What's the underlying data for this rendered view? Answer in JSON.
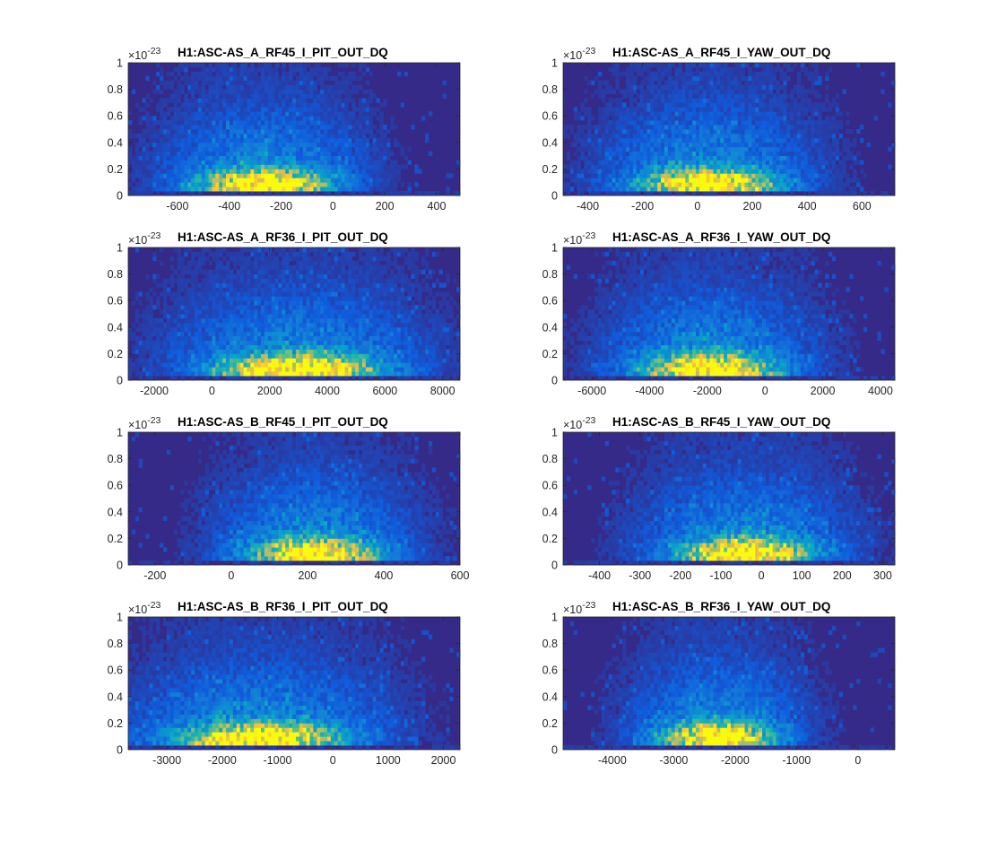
{
  "figure": {
    "colormap": [
      "#352a87",
      "#0f5cdd",
      "#1481d6",
      "#06a4ca",
      "#2eb7a4",
      "#87bf77",
      "#d1bb59",
      "#fec832",
      "#f9fb0e"
    ]
  },
  "chart_data": [
    {
      "type": "heatmap",
      "title": "H1:ASC-AS_A_RF45_I_PIT_OUT_DQ",
      "xlabel": "",
      "ylabel": "",
      "xlim": [
        -790,
        490
      ],
      "ylim": [
        0,
        1
      ],
      "y_exponent": "-23",
      "xticks": [
        -600,
        -400,
        -200,
        0,
        200,
        400
      ],
      "yticks": [
        0,
        0.2,
        0.4,
        0.6,
        0.8,
        1
      ],
      "density_peak": {
        "x": -270,
        "y": 0.08
      },
      "density_spread_x": 150,
      "grid": false
    },
    {
      "type": "heatmap",
      "title": "H1:ASC-AS_A_RF45_I_YAW_OUT_DQ",
      "xlabel": "",
      "ylabel": "",
      "xlim": [
        -490,
        720
      ],
      "ylim": [
        0,
        1
      ],
      "y_exponent": "-23",
      "xticks": [
        -400,
        -200,
        0,
        200,
        400,
        600
      ],
      "yticks": [
        0,
        0.2,
        0.4,
        0.6,
        0.8,
        1
      ],
      "density_peak": {
        "x": 40,
        "y": 0.08
      },
      "density_spread_x": 150,
      "grid": false
    },
    {
      "type": "heatmap",
      "title": "H1:ASC-AS_A_RF36_I_PIT_OUT_DQ",
      "xlabel": "",
      "ylabel": "",
      "xlim": [
        -2900,
        8600
      ],
      "ylim": [
        0,
        1
      ],
      "y_exponent": "-23",
      "xticks": [
        -2000,
        0,
        2000,
        4000,
        6000,
        8000
      ],
      "yticks": [
        0,
        0.2,
        0.4,
        0.6,
        0.8,
        1
      ],
      "density_peak": {
        "x": 3000,
        "y": 0.08
      },
      "density_spread_x": 1700,
      "grid": false
    },
    {
      "type": "heatmap",
      "title": "H1:ASC-AS_A_RF36_I_YAW_OUT_DQ",
      "xlabel": "",
      "ylabel": "",
      "xlim": [
        -7000,
        4500
      ],
      "ylim": [
        0,
        1
      ],
      "y_exponent": "-23",
      "xticks": [
        -6000,
        -4000,
        -2000,
        0,
        2000,
        4000
      ],
      "yticks": [
        0,
        0.2,
        0.4,
        0.6,
        0.8,
        1
      ],
      "density_peak": {
        "x": -1900,
        "y": 0.08
      },
      "density_spread_x": 1400,
      "grid": false
    },
    {
      "type": "heatmap",
      "title": "H1:ASC-AS_B_RF45_I_PIT_OUT_DQ",
      "xlabel": "",
      "ylabel": "",
      "xlim": [
        -270,
        600
      ],
      "ylim": [
        0,
        1
      ],
      "y_exponent": "-23",
      "xticks": [
        -200,
        0,
        200,
        400,
        600
      ],
      "yticks": [
        0,
        0.2,
        0.4,
        0.6,
        0.8,
        1
      ],
      "density_peak": {
        "x": 220,
        "y": 0.08
      },
      "density_spread_x": 100,
      "grid": false
    },
    {
      "type": "heatmap",
      "title": "H1:ASC-AS_B_RF45_I_YAW_OUT_DQ",
      "xlabel": "",
      "ylabel": "",
      "xlim": [
        -490,
        330
      ],
      "ylim": [
        0,
        1
      ],
      "y_exponent": "-23",
      "xticks": [
        -400,
        -300,
        -200,
        -100,
        0,
        100,
        200,
        300
      ],
      "yticks": [
        0,
        0.2,
        0.4,
        0.6,
        0.8,
        1
      ],
      "density_peak": {
        "x": -40,
        "y": 0.08
      },
      "density_spread_x": 100,
      "grid": false
    },
    {
      "type": "heatmap",
      "title": "H1:ASC-AS_B_RF36_I_PIT_OUT_DQ",
      "xlabel": "",
      "ylabel": "",
      "xlim": [
        -3700,
        2300
      ],
      "ylim": [
        0,
        1
      ],
      "y_exponent": "-23",
      "xticks": [
        -3000,
        -2000,
        -1000,
        0,
        1000,
        2000
      ],
      "yticks": [
        0,
        0.2,
        0.4,
        0.6,
        0.8,
        1
      ],
      "density_peak": {
        "x": -1300,
        "y": 0.08
      },
      "density_spread_x": 900,
      "grid": false
    },
    {
      "type": "heatmap",
      "title": "H1:ASC-AS_B_RF36_I_YAW_OUT_DQ",
      "xlabel": "",
      "ylabel": "",
      "xlim": [
        -4800,
        600
      ],
      "ylim": [
        0,
        1
      ],
      "y_exponent": "-23",
      "xticks": [
        -4000,
        -3000,
        -2000,
        -1000,
        0
      ],
      "yticks": [
        0,
        0.2,
        0.4,
        0.6,
        0.8,
        1
      ],
      "density_peak": {
        "x": -2300,
        "y": 0.08
      },
      "density_spread_x": 550,
      "grid": false
    }
  ]
}
